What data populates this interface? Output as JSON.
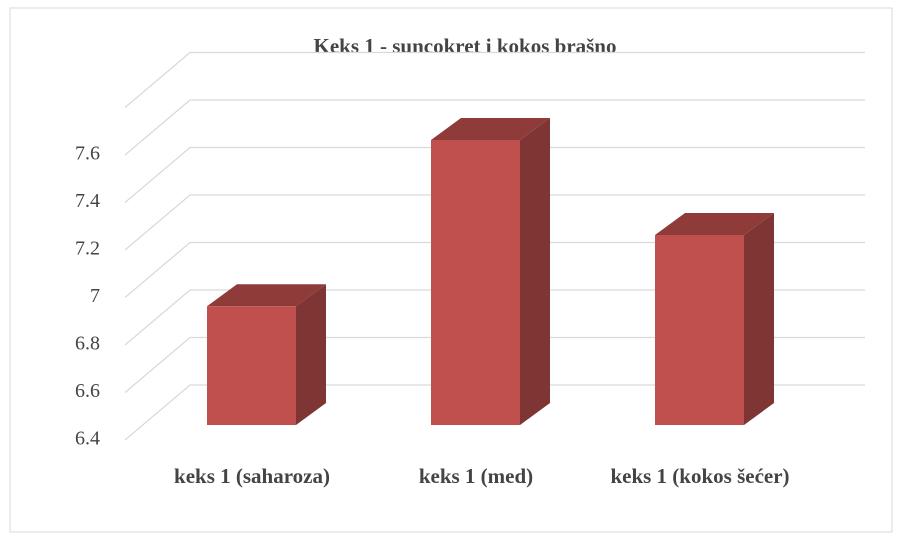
{
  "chart_data": {
    "type": "bar3d",
    "title": "Keks 1 - suncokret i kokos brašno",
    "categories": [
      "keks 1 (saharoza)",
      "keks 1 (med)",
      "keks 1 (kokos šećer)"
    ],
    "values": [
      6.9,
      7.6,
      7.2
    ],
    "color": "#c0504d",
    "ylim": [
      6.4,
      7.8
    ],
    "yticks": [
      6.4,
      6.6,
      6.8,
      7,
      7.2,
      7.4,
      7.6
    ],
    "grid": true
  }
}
